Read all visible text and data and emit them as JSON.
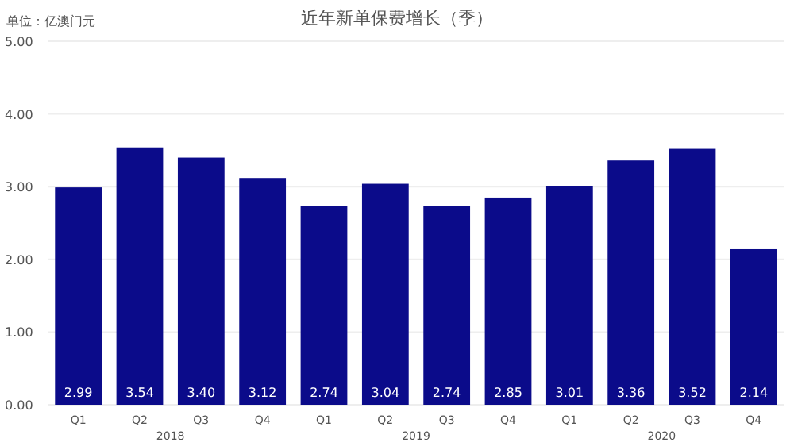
{
  "chart_data": {
    "type": "bar",
    "title": "近年新单保费增长（季）",
    "ylabel": "单位：亿澳门元",
    "categories": [
      "Q1",
      "Q2",
      "Q3",
      "Q4",
      "Q1",
      "Q2",
      "Q3",
      "Q4",
      "Q1",
      "Q2",
      "Q3",
      "Q4"
    ],
    "values": [
      2.99,
      3.54,
      3.4,
      3.12,
      2.74,
      3.04,
      2.74,
      2.85,
      3.01,
      3.36,
      3.52,
      2.14
    ],
    "value_labels": [
      "2.99",
      "3.54",
      "3.40",
      "3.12",
      "2.74",
      "3.04",
      "2.74",
      "2.85",
      "3.01",
      "3.36",
      "3.52",
      "2.14"
    ],
    "color": "#0b0b8a",
    "grid": "y",
    "ylim": [
      0,
      5
    ],
    "yticks": [
      {
        "value": 0,
        "label": "0.00"
      },
      {
        "value": 1,
        "label": "1.00"
      },
      {
        "value": 2,
        "label": "2.00"
      },
      {
        "value": 3,
        "label": "3.00"
      },
      {
        "value": 4,
        "label": "4.00"
      },
      {
        "value": 5,
        "label": "5.00"
      }
    ],
    "annotations": [
      "2018",
      "2019",
      "2020"
    ]
  }
}
